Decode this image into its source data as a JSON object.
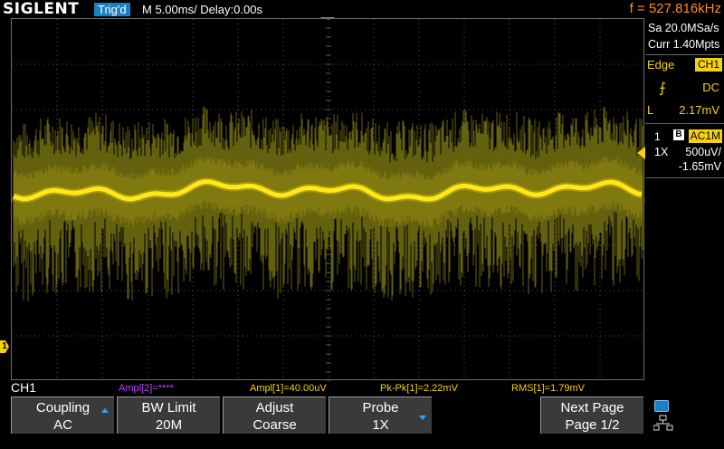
{
  "brand": "SIGLENT",
  "status": {
    "trigger": "Trig'd",
    "timebase": "M 5.00ms/ Delay:0.00s",
    "frequency": "f = 527.816kHz"
  },
  "acquisition": {
    "sample_rate": "Sa 20.0MSa/s",
    "memory": "Curr 1.40Mpts"
  },
  "trigger_panel": {
    "type": "Edge",
    "source": "CH1",
    "coupling": "DC",
    "level_label": "L",
    "level_value": "2.17mV"
  },
  "channel_panel": {
    "number": "1",
    "bw_marker": "B",
    "coupling": "AC1M",
    "probe": "1X",
    "scale": "500uV/",
    "offset": "-1.65mV"
  },
  "channel_label": "CH1",
  "zero_marker": "1",
  "measurements": [
    {
      "text": "Ampl[2]=****",
      "color": "#c040ff"
    },
    {
      "text": "Ampl[1]=40.00uV",
      "color": "#f5d20a"
    },
    {
      "text": "Pk-Pk[1]=2.22mV",
      "color": "#f5d20a"
    },
    {
      "text": "RMS[1]=1.79mV",
      "color": "#f5d20a"
    }
  ],
  "softkeys": [
    {
      "line1": "Coupling",
      "line2": "AC"
    },
    {
      "line1": "BW Limit",
      "line2": "20M"
    },
    {
      "line1": "Adjust",
      "line2": "Coarse"
    },
    {
      "line1": "Probe",
      "line2": "1X"
    },
    {
      "line1": "Next Page",
      "line2": "Page 1/2"
    }
  ],
  "colors": {
    "trace": "#f5d20a",
    "accent": "#1a7fc4",
    "frequency": "#ff8c1a"
  }
}
